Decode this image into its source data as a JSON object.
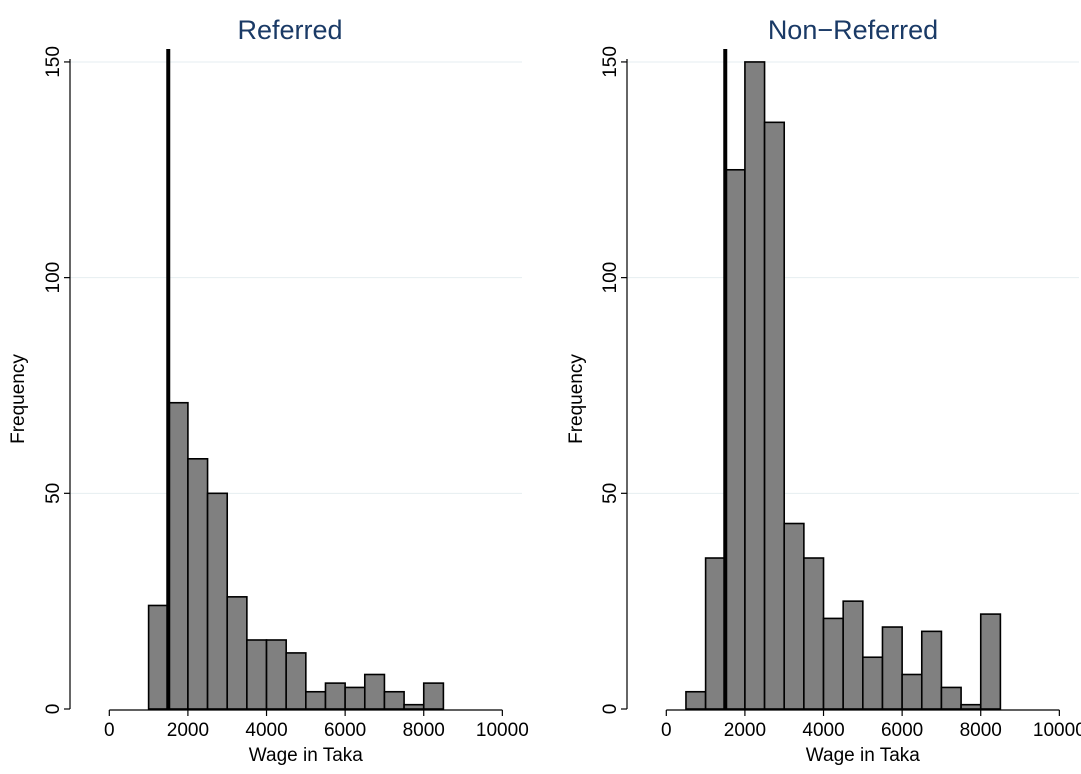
{
  "chart_data": [
    {
      "type": "bar",
      "title": "Referred",
      "xlabel": "Wage in Taka",
      "ylabel": "Frequency",
      "xlim": [
        -1000,
        10500
      ],
      "ylim": [
        0,
        153
      ],
      "xticks": [
        0,
        2000,
        4000,
        6000,
        8000,
        10000
      ],
      "yticks": [
        0,
        50,
        100,
        150
      ],
      "grid": "horizontal",
      "bin_width": 500,
      "bins": [
        {
          "x0": 1000,
          "x1": 1500,
          "value": 24
        },
        {
          "x0": 1500,
          "x1": 2000,
          "value": 71
        },
        {
          "x0": 2000,
          "x1": 2500,
          "value": 58
        },
        {
          "x0": 2500,
          "x1": 3000,
          "value": 50
        },
        {
          "x0": 3000,
          "x1": 3500,
          "value": 26
        },
        {
          "x0": 3500,
          "x1": 4000,
          "value": 16
        },
        {
          "x0": 4000,
          "x1": 4500,
          "value": 16
        },
        {
          "x0": 4500,
          "x1": 5000,
          "value": 13
        },
        {
          "x0": 5000,
          "x1": 5500,
          "value": 4
        },
        {
          "x0": 5500,
          "x1": 6000,
          "value": 6
        },
        {
          "x0": 6000,
          "x1": 6500,
          "value": 5
        },
        {
          "x0": 6500,
          "x1": 7000,
          "value": 8
        },
        {
          "x0": 7000,
          "x1": 7500,
          "value": 4
        },
        {
          "x0": 7500,
          "x1": 8000,
          "value": 1
        },
        {
          "x0": 8000,
          "x1": 8500,
          "value": 6
        }
      ],
      "reference_line_x": 1500
    },
    {
      "type": "bar",
      "title": "Non−Referred",
      "xlabel": "Wage in Taka",
      "ylabel": "Frequency",
      "xlim": [
        -1000,
        10500
      ],
      "ylim": [
        0,
        153
      ],
      "xticks": [
        0,
        2000,
        4000,
        6000,
        8000,
        10000
      ],
      "yticks": [
        0,
        50,
        100,
        150
      ],
      "grid": "horizontal",
      "bin_width": 500,
      "bins": [
        {
          "x0": 500,
          "x1": 1000,
          "value": 4
        },
        {
          "x0": 1000,
          "x1": 1500,
          "value": 35
        },
        {
          "x0": 1500,
          "x1": 2000,
          "value": 125
        },
        {
          "x0": 2000,
          "x1": 2500,
          "value": 150
        },
        {
          "x0": 2500,
          "x1": 3000,
          "value": 136
        },
        {
          "x0": 3000,
          "x1": 3500,
          "value": 43
        },
        {
          "x0": 3500,
          "x1": 4000,
          "value": 35
        },
        {
          "x0": 4000,
          "x1": 4500,
          "value": 21
        },
        {
          "x0": 4500,
          "x1": 5000,
          "value": 25
        },
        {
          "x0": 5000,
          "x1": 5500,
          "value": 12
        },
        {
          "x0": 5500,
          "x1": 6000,
          "value": 19
        },
        {
          "x0": 6000,
          "x1": 6500,
          "value": 8
        },
        {
          "x0": 6500,
          "x1": 7000,
          "value": 18
        },
        {
          "x0": 7000,
          "x1": 7500,
          "value": 5
        },
        {
          "x0": 7500,
          "x1": 8000,
          "value": 1
        },
        {
          "x0": 8000,
          "x1": 8500,
          "value": 22
        }
      ],
      "reference_line_x": 1500
    }
  ],
  "colors": {
    "bar_fill": "#808080",
    "bar_stroke": "#000000",
    "title": "#1a3a66",
    "grid": "#e6eef0",
    "axis": "#000000",
    "reference_line": "#000000"
  }
}
